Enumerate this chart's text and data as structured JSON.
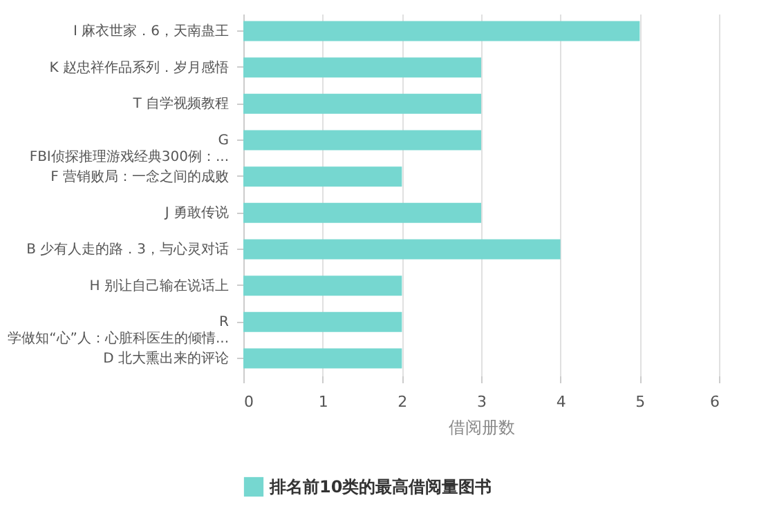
{
  "chart_data": {
    "type": "bar",
    "orientation": "horizontal",
    "xlabel": "借阅册数",
    "categories": [
      "I 麻衣世家．6，天南蛊王",
      "K 赵忠祥作品系列．岁月感悟",
      "T 自学视频教程",
      "G\nFBI侦探推理游戏经典300例：...",
      "F 营销败局：一念之间的成败",
      "J 勇敢传说",
      "B 少有人走的路．3，与心灵对话",
      "H 别让自己输在说话上",
      "R\n学做知“心”人：心脏科医生的倾情...",
      "D 北大熏出来的评论"
    ],
    "series": [
      {
        "name": "排名前10类的最高借阅量图书",
        "color": "#76d7d0",
        "values": [
          5,
          3,
          3,
          3,
          2,
          3,
          4,
          2,
          2,
          2
        ]
      }
    ],
    "xlim": [
      0,
      6
    ],
    "xticks": [
      0,
      1,
      2,
      3,
      4,
      5,
      6
    ],
    "grid": "x",
    "legend": "bottom"
  }
}
